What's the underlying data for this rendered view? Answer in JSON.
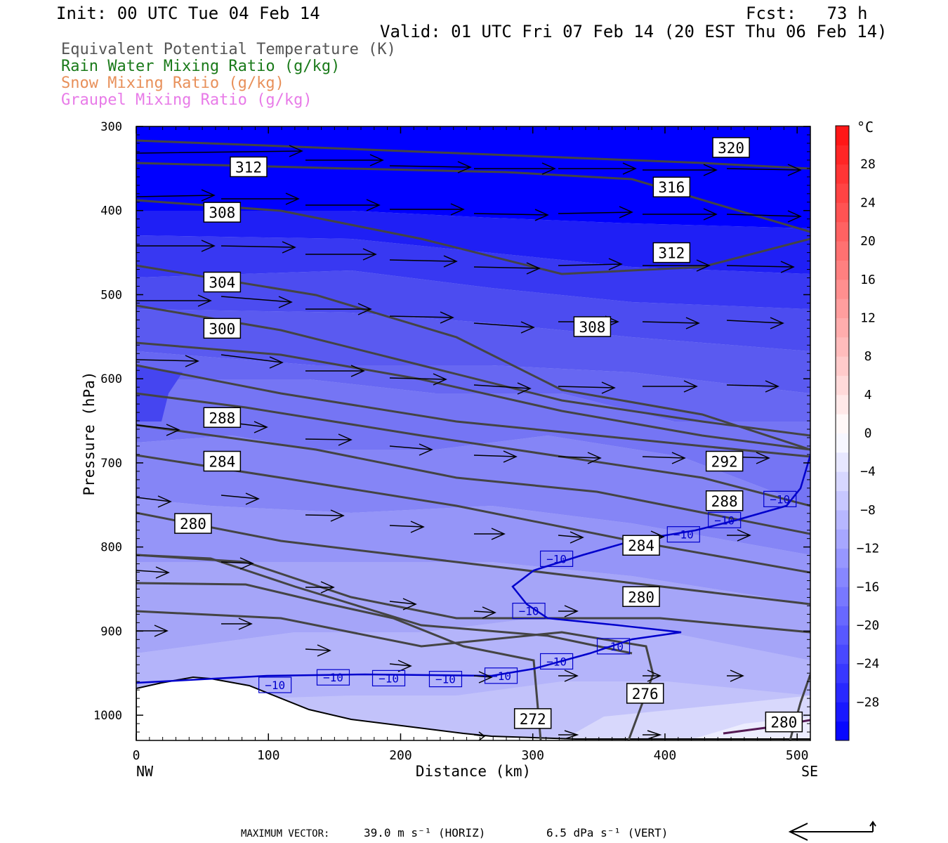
{
  "header": {
    "init": "Init: 00 UTC Tue 04 Feb 14",
    "fcst": "Fcst:   73 h",
    "valid": "Valid: 01 UTC Fri 07 Feb 14 (20 EST Thu 06 Feb 14)"
  },
  "legend": [
    {
      "text": "Equivalent Potential Temperature (K)",
      "color": "#555555"
    },
    {
      "text": "Rain Water Mixing Ratio (g/kg)",
      "color": "#1a7a1a"
    },
    {
      "text": "Snow Mixing Ratio (g/kg)",
      "color": "#e8905a"
    },
    {
      "text": "Graupel Mixing Ratio (g/kg)",
      "color": "#e87be8"
    }
  ],
  "chart_data": {
    "type": "cross-section",
    "xlabel": "Distance (km)",
    "ylabel": "Pressure (hPa)",
    "x_ticks": [
      0,
      100,
      200,
      300,
      400,
      500
    ],
    "y_ticks": [
      300,
      400,
      500,
      600,
      700,
      800,
      900,
      1000
    ],
    "xlim": [
      0,
      510
    ],
    "ylim": [
      1030,
      300
    ],
    "endpoints": {
      "left": "NW",
      "right": "SE"
    },
    "colorbar": {
      "unit": "°C",
      "ticks": [
        28,
        24,
        20,
        16,
        12,
        8,
        4,
        0,
        -4,
        -8,
        -12,
        -16,
        -20,
        -24,
        -28
      ],
      "range": [
        -32,
        32
      ],
      "levels": [
        -32,
        -30,
        -28,
        -26,
        -24,
        -22,
        -20,
        -18,
        -16,
        -14,
        -12,
        -10,
        -8,
        -6,
        -4,
        -2,
        0,
        2,
        4,
        6,
        8,
        10,
        12,
        14,
        16,
        18,
        20,
        22,
        24,
        26,
        28,
        30,
        32
      ]
    },
    "theta_e_labels": [
      {
        "label": "320",
        "x": 450,
        "p": 325
      },
      {
        "label": "312",
        "x": 85,
        "p": 348
      },
      {
        "label": "316",
        "x": 405,
        "p": 372
      },
      {
        "label": "308",
        "x": 65,
        "p": 402
      },
      {
        "label": "312",
        "x": 405,
        "p": 450
      },
      {
        "label": "304",
        "x": 65,
        "p": 485
      },
      {
        "label": "308",
        "x": 345,
        "p": 538
      },
      {
        "label": "300",
        "x": 65,
        "p": 540
      },
      {
        "label": "288",
        "x": 65,
        "p": 646
      },
      {
        "label": "284",
        "x": 65,
        "p": 698
      },
      {
        "label": "292",
        "x": 445,
        "p": 698
      },
      {
        "label": "288",
        "x": 445,
        "p": 745
      },
      {
        "label": "280",
        "x": 43,
        "p": 772
      },
      {
        "label": "284",
        "x": 382,
        "p": 798
      },
      {
        "label": "280",
        "x": 382,
        "p": 859
      },
      {
        "label": "276",
        "x": 385,
        "p": 974
      },
      {
        "label": "272",
        "x": 300,
        "p": 1004
      },
      {
        "label": "280",
        "x": 490,
        "p": 1008
      }
    ],
    "temp_labels": [
      {
        "label": "−10",
        "x": 105,
        "p": 964
      },
      {
        "label": "−10",
        "x": 149,
        "p": 955
      },
      {
        "label": "−10",
        "x": 191,
        "p": 956
      },
      {
        "label": "−10",
        "x": 234,
        "p": 957
      },
      {
        "label": "−10",
        "x": 276,
        "p": 953
      },
      {
        "label": "−10",
        "x": 318,
        "p": 936
      },
      {
        "label": "−10",
        "x": 361,
        "p": 918
      },
      {
        "label": "−10",
        "x": 297,
        "p": 876
      },
      {
        "label": "−10",
        "x": 318,
        "p": 814
      },
      {
        "label": "−10",
        "x": 414,
        "p": 785
      },
      {
        "label": "−10",
        "x": 445,
        "p": 768
      },
      {
        "label": "−10",
        "x": 487,
        "p": 743
      }
    ],
    "footer": {
      "max_vector_label": "MAXIMUM VECTOR:",
      "horiz": "39.0 m s⁻¹ (HORIZ)",
      "vert": "6.5 dPa s⁻¹ (VERT)"
    }
  }
}
